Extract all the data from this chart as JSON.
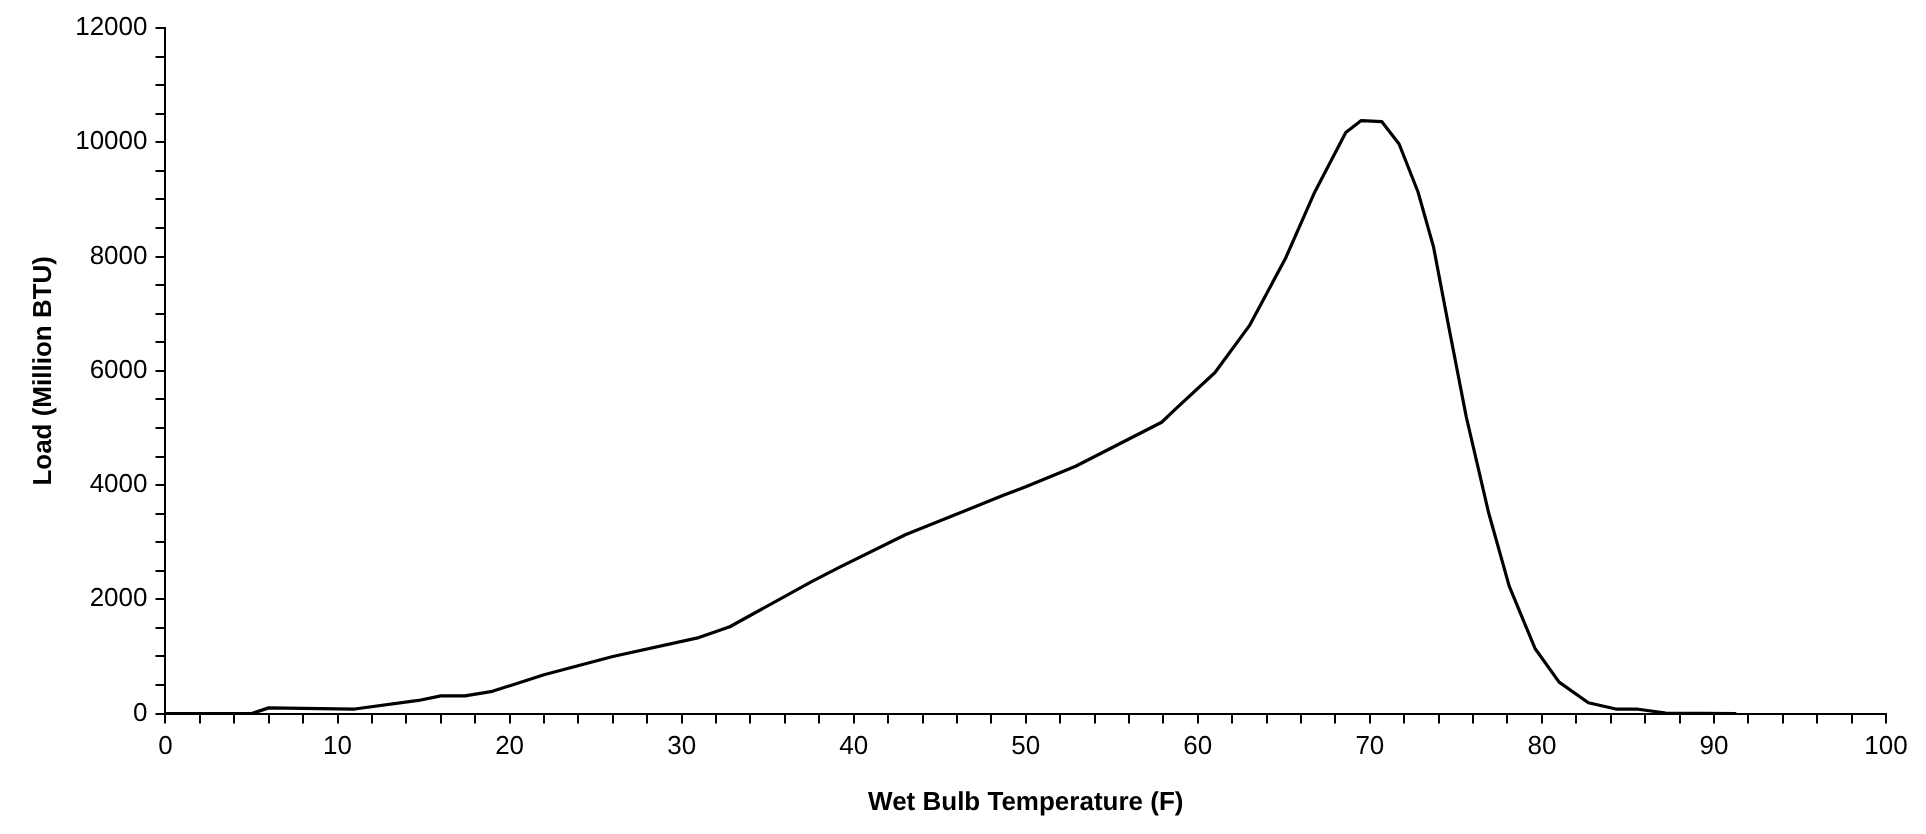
{
  "chart_data": {
    "type": "line",
    "xlabel": "Wet Bulb Temperature (F)",
    "ylabel": "Load (Million BTU)",
    "x": [
      0,
      5,
      6,
      11,
      14.7,
      16,
      17.4,
      19,
      22,
      26,
      31,
      32.8,
      37.5,
      39.1,
      43,
      48.7,
      50,
      52.9,
      57.9,
      58.7,
      61,
      63,
      65.1,
      66.8,
      68.6,
      69.5,
      70.7,
      71.7,
      72.8,
      73.7,
      74.6,
      75.6,
      76.9,
      78.1,
      79.6,
      81,
      82.7,
      84.3,
      85.5,
      87.2,
      91.3
    ],
    "series": [
      {
        "color": "#000000",
        "values": [
          0,
          0,
          100,
          80,
          230,
          310,
          310,
          390,
          680,
          1000,
          1330,
          1520,
          2300,
          2550,
          3130,
          3820,
          3970,
          4330,
          5100,
          5330,
          5970,
          6790,
          7970,
          9130,
          10170,
          10380,
          10360,
          9970,
          9130,
          8170,
          6750,
          5200,
          3520,
          2230,
          1140,
          550,
          190,
          80,
          80,
          10,
          0
        ]
      }
    ],
    "xlim": [
      0,
      100
    ],
    "xticks": [
      0,
      {
        "value": 2,
        "label": null
      },
      {
        "value": 4,
        "label": null
      },
      {
        "value": 6,
        "label": null
      },
      {
        "value": 8,
        "label": null
      },
      10,
      {
        "value": 12,
        "label": null
      },
      {
        "value": 14,
        "label": null
      },
      {
        "value": 16,
        "label": null
      },
      {
        "value": 18,
        "label": null
      },
      20,
      {
        "value": 22,
        "label": null
      },
      {
        "value": 24,
        "label": null
      },
      {
        "value": 26,
        "label": null
      },
      {
        "value": 28,
        "label": null
      },
      30,
      {
        "value": 32,
        "label": null
      },
      {
        "value": 34,
        "label": null
      },
      {
        "value": 36,
        "label": null
      },
      {
        "value": 38,
        "label": null
      },
      40,
      {
        "value": 42,
        "label": null
      },
      {
        "value": 44,
        "label": null
      },
      {
        "value": 46,
        "label": null
      },
      {
        "value": 48,
        "label": null
      },
      50,
      {
        "value": 52,
        "label": null
      },
      {
        "value": 54,
        "label": null
      },
      {
        "value": 56,
        "label": null
      },
      {
        "value": 58,
        "label": null
      },
      60,
      {
        "value": 62,
        "label": null
      },
      {
        "value": 64,
        "label": null
      },
      {
        "value": 66,
        "label": null
      },
      {
        "value": 68,
        "label": null
      },
      70,
      {
        "value": 72,
        "label": null
      },
      {
        "value": 74,
        "label": null
      },
      {
        "value": 76,
        "label": null
      },
      {
        "value": 78,
        "label": null
      },
      80,
      {
        "value": 82,
        "label": null
      },
      {
        "value": 84,
        "label": null
      },
      {
        "value": 86,
        "label": null
      },
      {
        "value": 88,
        "label": null
      },
      90,
      {
        "value": 92,
        "label": null
      },
      {
        "value": 94,
        "label": null
      },
      {
        "value": 96,
        "label": null
      },
      {
        "value": 98,
        "label": null
      },
      100
    ],
    "ylim": [
      0,
      12000
    ],
    "yticks": [
      0,
      {
        "value": 500,
        "label": null
      },
      {
        "value": 1000,
        "label": null
      },
      {
        "value": 1500,
        "label": null
      },
      2000,
      {
        "value": 2500,
        "label": null
      },
      {
        "value": 3000,
        "label": null
      },
      {
        "value": 3500,
        "label": null
      },
      4000,
      {
        "value": 4500,
        "label": null
      },
      {
        "value": 5000,
        "label": null
      },
      {
        "value": 5500,
        "label": null
      },
      6000,
      {
        "value": 6500,
        "label": null
      },
      {
        "value": 7000,
        "label": null
      },
      {
        "value": 7500,
        "label": null
      },
      8000,
      {
        "value": 8500,
        "label": null
      },
      {
        "value": 9000,
        "label": null
      },
      {
        "value": 9500,
        "label": null
      },
      10000,
      {
        "value": 10500,
        "label": null
      },
      {
        "value": 11000,
        "label": null
      },
      {
        "value": 11500,
        "label": null
      },
      12000
    ],
    "grid": false,
    "legend": false,
    "marker": "none",
    "line_style": "solid"
  }
}
